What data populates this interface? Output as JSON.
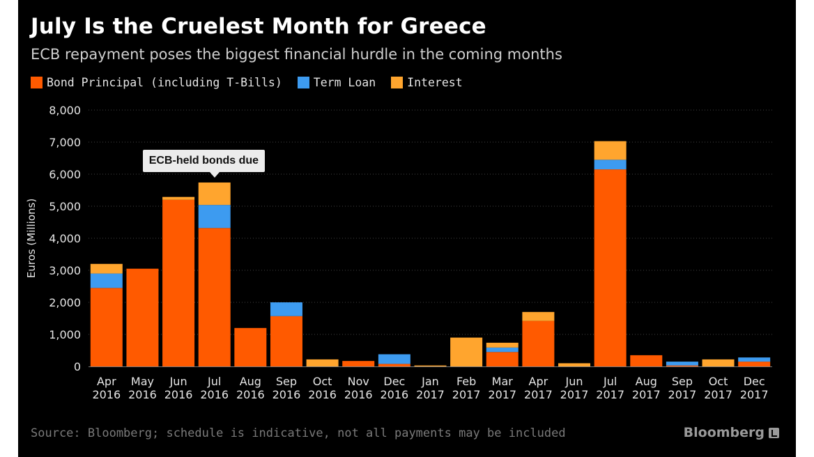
{
  "header": {
    "title": "July Is the Cruelest Month for Greece",
    "subtitle": "ECB repayment poses the biggest financial hurdle in the coming months"
  },
  "footer": {
    "source": "Source: Bloomberg; schedule is indicative, not all payments may be included",
    "brand": "Bloomberg"
  },
  "colors": {
    "background": "#000000",
    "bond_principal": "#ff5a00",
    "term_loan": "#3d9bf0",
    "interest": "#ffa52e",
    "grid": "#444444",
    "text": "#ffffff"
  },
  "chart_data": {
    "type": "bar",
    "stacked": true,
    "title": "July Is the Cruelest Month for Greece",
    "subtitle": "ECB repayment poses the biggest financial hurdle in the coming months",
    "ylabel": "Euros (Millions)",
    "xlabel": "",
    "ylim": [
      0,
      8000
    ],
    "yticks": [
      0,
      1000,
      2000,
      3000,
      4000,
      5000,
      6000,
      7000,
      8000
    ],
    "ytick_labels": [
      "0",
      "1,000",
      "2,000",
      "3,000",
      "4,000",
      "5,000",
      "6,000",
      "7,000",
      "8,000"
    ],
    "grid": true,
    "legend_position": "top-left",
    "categories": [
      "Apr 2016",
      "May 2016",
      "Jun 2016",
      "Jul 2016",
      "Aug 2016",
      "Sep 2016",
      "Oct 2016",
      "Nov 2016",
      "Dec 2016",
      "Jan 2017",
      "Feb 2017",
      "Mar 2017",
      "Apr 2017",
      "Jun 2017",
      "Jul 2017",
      "Aug 2017",
      "Sep 2017",
      "Oct 2017",
      "Dec 2017"
    ],
    "category_lines": [
      [
        "Apr",
        "2016"
      ],
      [
        "May",
        "2016"
      ],
      [
        "Jun",
        "2016"
      ],
      [
        "Jul",
        "2016"
      ],
      [
        "Aug",
        "2016"
      ],
      [
        "Sep",
        "2016"
      ],
      [
        "Oct",
        "2016"
      ],
      [
        "Nov",
        "2016"
      ],
      [
        "Dec",
        "2016"
      ],
      [
        "Jan",
        "2017"
      ],
      [
        "Feb",
        "2017"
      ],
      [
        "Mar",
        "2017"
      ],
      [
        "Apr",
        "2017"
      ],
      [
        "Jun",
        "2017"
      ],
      [
        "Jul",
        "2017"
      ],
      [
        "Aug",
        "2017"
      ],
      [
        "Sep",
        "2017"
      ],
      [
        "Oct",
        "2017"
      ],
      [
        "Dec",
        "2017"
      ]
    ],
    "series": [
      {
        "name": "Bond Principal (including T-Bills)",
        "color": "#ff5a00",
        "values": [
          2450,
          3050,
          5200,
          4320,
          1200,
          1570,
          0,
          170,
          80,
          0,
          0,
          450,
          1420,
          0,
          6150,
          350,
          30,
          0,
          150
        ]
      },
      {
        "name": "Term Loan",
        "color": "#3d9bf0",
        "values": [
          450,
          0,
          0,
          720,
          0,
          430,
          0,
          0,
          300,
          0,
          0,
          140,
          0,
          0,
          300,
          0,
          120,
          0,
          130
        ]
      },
      {
        "name": "Interest",
        "color": "#ffa52e",
        "values": [
          300,
          0,
          90,
          700,
          0,
          0,
          220,
          0,
          0,
          30,
          900,
          150,
          280,
          100,
          580,
          0,
          0,
          220,
          0
        ]
      }
    ],
    "annotations": [
      {
        "text": "ECB-held bonds due",
        "category": "Jul 2016"
      }
    ]
  }
}
